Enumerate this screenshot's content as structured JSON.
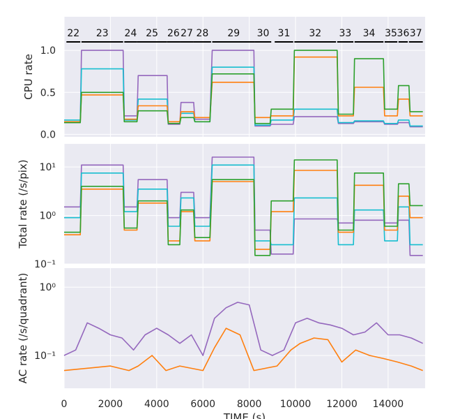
{
  "colors": {
    "panel_bg": "#eaeaf2",
    "grid": "#ffffff",
    "purple": "#9467bd",
    "cyan": "#17becf",
    "orange": "#ff7f0e",
    "green": "#2ca02c"
  },
  "chart_data": [
    {
      "type": "line",
      "ylabel": "CPU rate",
      "yscale": "linear",
      "ylim": [
        -0.03,
        1.4
      ],
      "yticks": [
        0.0,
        0.5,
        1.0
      ],
      "ytick_labels": [
        "0.0",
        "0.5",
        "1.0"
      ],
      "xlim": [
        0,
        15600
      ],
      "grid": true,
      "segment_labels": [
        {
          "label": "22",
          "x_start": 100,
          "x_end": 700
        },
        {
          "label": "23",
          "x_start": 750,
          "x_end": 2550
        },
        {
          "label": "24",
          "x_start": 2600,
          "x_end": 3150
        },
        {
          "label": "25",
          "x_start": 3150,
          "x_end": 4450
        },
        {
          "label": "26",
          "x_start": 4450,
          "x_end": 5000
        },
        {
          "label": "27",
          "x_start": 5000,
          "x_end": 5600
        },
        {
          "label": "28",
          "x_start": 5600,
          "x_end": 6350
        },
        {
          "label": "29",
          "x_start": 6400,
          "x_end": 8250
        },
        {
          "label": "30",
          "x_start": 8250,
          "x_end": 8950
        },
        {
          "label": "31",
          "x_start": 9100,
          "x_end": 9900
        },
        {
          "label": "32",
          "x_start": 9950,
          "x_end": 11750
        },
        {
          "label": "33",
          "x_start": 11800,
          "x_end": 12500
        },
        {
          "label": "34",
          "x_start": 12550,
          "x_end": 13800
        },
        {
          "label": "35",
          "x_start": 13850,
          "x_end": 14400
        },
        {
          "label": "36",
          "x_start": 14450,
          "x_end": 14850
        },
        {
          "label": "37",
          "x_start": 14900,
          "x_end": 15500
        }
      ],
      "series": [
        {
          "color": "purple",
          "x": [
            0,
            700,
            750,
            2550,
            2600,
            3150,
            3200,
            4450,
            4500,
            5000,
            5050,
            5600,
            5650,
            6300,
            6400,
            8200,
            8250,
            8900,
            8950,
            9900,
            9950,
            11800,
            11850,
            12500,
            12550,
            13800,
            13850,
            14400,
            14450,
            14900,
            14950,
            15500
          ],
          "y": [
            0.14,
            0.14,
            1.0,
            1.0,
            0.22,
            0.22,
            0.7,
            0.7,
            0.12,
            0.12,
            0.38,
            0.38,
            0.18,
            0.18,
            1.0,
            1.0,
            0.1,
            0.1,
            0.12,
            0.12,
            0.21,
            0.21,
            0.13,
            0.13,
            0.15,
            0.15,
            0.12,
            0.12,
            0.14,
            0.14,
            0.09,
            0.09
          ]
        },
        {
          "color": "cyan",
          "x": [
            0,
            700,
            750,
            2550,
            2600,
            3150,
            3200,
            4450,
            4500,
            5000,
            5050,
            5600,
            5650,
            6300,
            6400,
            8200,
            8250,
            8900,
            8950,
            9900,
            9950,
            11800,
            11850,
            12500,
            12550,
            13800,
            13850,
            14400,
            14450,
            14900,
            14950,
            15500
          ],
          "y": [
            0.17,
            0.17,
            0.78,
            0.78,
            0.17,
            0.17,
            0.42,
            0.42,
            0.15,
            0.15,
            0.25,
            0.25,
            0.15,
            0.15,
            0.8,
            0.8,
            0.11,
            0.11,
            0.17,
            0.17,
            0.3,
            0.3,
            0.14,
            0.14,
            0.16,
            0.16,
            0.13,
            0.13,
            0.17,
            0.17,
            0.1,
            0.1
          ]
        },
        {
          "color": "orange",
          "x": [
            0,
            700,
            750,
            2550,
            2600,
            3150,
            3200,
            4450,
            4500,
            5000,
            5050,
            5600,
            5650,
            6300,
            6400,
            8200,
            8250,
            8900,
            8950,
            9900,
            9950,
            11800,
            11850,
            12500,
            12550,
            13800,
            13850,
            14400,
            14450,
            14900,
            14950,
            15500
          ],
          "y": [
            0.15,
            0.15,
            0.47,
            0.47,
            0.18,
            0.18,
            0.34,
            0.34,
            0.15,
            0.15,
            0.27,
            0.27,
            0.2,
            0.2,
            0.62,
            0.62,
            0.2,
            0.2,
            0.22,
            0.22,
            0.92,
            0.92,
            0.22,
            0.22,
            0.56,
            0.56,
            0.22,
            0.22,
            0.42,
            0.42,
            0.22,
            0.22
          ]
        },
        {
          "color": "green",
          "x": [
            0,
            700,
            750,
            2550,
            2600,
            3150,
            3200,
            4450,
            4500,
            5000,
            5050,
            5600,
            5650,
            6300,
            6400,
            8200,
            8250,
            8900,
            8950,
            9900,
            9950,
            11800,
            11850,
            12500,
            12550,
            13800,
            13850,
            14400,
            14450,
            14900,
            14950,
            15500
          ],
          "y": [
            0.14,
            0.14,
            0.5,
            0.5,
            0.15,
            0.15,
            0.28,
            0.28,
            0.13,
            0.13,
            0.2,
            0.2,
            0.15,
            0.15,
            0.72,
            0.72,
            0.13,
            0.13,
            0.3,
            0.3,
            1.0,
            1.0,
            0.24,
            0.24,
            0.9,
            0.9,
            0.3,
            0.3,
            0.58,
            0.58,
            0.27,
            0.27
          ]
        }
      ]
    },
    {
      "type": "line",
      "ylabel": "Total rate (/s/pix)",
      "yscale": "log",
      "ylim": [
        0.1,
        30
      ],
      "yticks": [
        0.1,
        1,
        10
      ],
      "ytick_labels": [
        "10⁻¹",
        "10⁰",
        "10¹"
      ],
      "xlim": [
        0,
        15600
      ],
      "grid": true,
      "series": [
        {
          "color": "purple",
          "x": [
            0,
            700,
            750,
            2550,
            2600,
            3150,
            3200,
            4450,
            4500,
            5000,
            5050,
            5600,
            5650,
            6300,
            6400,
            8200,
            8250,
            8900,
            8950,
            9900,
            9950,
            11800,
            11850,
            12500,
            12550,
            13800,
            13850,
            14400,
            14450,
            14900,
            14950,
            15500
          ],
          "y": [
            1.5,
            1.5,
            11,
            11,
            1.5,
            1.5,
            5.5,
            5.5,
            0.9,
            0.9,
            3.0,
            3.0,
            0.9,
            0.9,
            16,
            16,
            0.5,
            0.5,
            0.16,
            0.16,
            0.85,
            0.85,
            0.7,
            0.7,
            0.8,
            0.8,
            0.7,
            0.7,
            0.8,
            0.8,
            0.15,
            0.15
          ]
        },
        {
          "color": "cyan",
          "x": [
            0,
            700,
            750,
            2550,
            2600,
            3150,
            3200,
            4450,
            4500,
            5000,
            5050,
            5600,
            5650,
            6300,
            6400,
            8200,
            8250,
            8900,
            8950,
            9900,
            9950,
            11800,
            11850,
            12500,
            12550,
            13800,
            13850,
            14400,
            14450,
            14900,
            14950,
            15500
          ],
          "y": [
            0.9,
            0.9,
            7.5,
            7.5,
            1.2,
            1.2,
            3.5,
            3.5,
            0.6,
            0.6,
            2.3,
            2.3,
            0.6,
            0.6,
            11,
            11,
            0.3,
            0.3,
            0.25,
            0.25,
            2.3,
            2.3,
            0.25,
            0.25,
            1.3,
            1.3,
            0.3,
            0.3,
            1.5,
            1.5,
            0.25,
            0.25
          ]
        },
        {
          "color": "orange",
          "x": [
            0,
            700,
            750,
            2550,
            2600,
            3150,
            3200,
            4450,
            4500,
            5000,
            5050,
            5600,
            5650,
            6300,
            6400,
            8200,
            8250,
            8900,
            8950,
            9900,
            9950,
            11800,
            11850,
            12500,
            12550,
            13800,
            13850,
            14400,
            14450,
            14900,
            14950,
            15500
          ],
          "y": [
            0.4,
            0.4,
            3.5,
            3.5,
            0.5,
            0.5,
            1.8,
            1.8,
            0.3,
            0.3,
            1.2,
            1.2,
            0.3,
            0.3,
            5.0,
            5.0,
            0.2,
            0.2,
            1.2,
            1.2,
            8.5,
            8.5,
            0.45,
            0.45,
            4.2,
            4.2,
            0.5,
            0.5,
            2.5,
            2.5,
            0.9,
            0.9
          ]
        },
        {
          "color": "green",
          "x": [
            0,
            700,
            750,
            2550,
            2600,
            3150,
            3200,
            4450,
            4500,
            5000,
            5050,
            5600,
            5650,
            6300,
            6400,
            8200,
            8250,
            8900,
            8950,
            9900,
            9950,
            11800,
            11850,
            12500,
            12550,
            13800,
            13850,
            14400,
            14450,
            14900,
            14950,
            15500
          ],
          "y": [
            0.45,
            0.45,
            4.0,
            4.0,
            0.55,
            0.55,
            2.0,
            2.0,
            0.25,
            0.25,
            1.3,
            1.3,
            0.35,
            0.35,
            5.5,
            5.5,
            0.15,
            0.15,
            2.0,
            2.0,
            14,
            14,
            0.5,
            0.5,
            7.5,
            7.5,
            0.6,
            0.6,
            4.5,
            4.5,
            1.6,
            1.6
          ]
        }
      ]
    },
    {
      "type": "line",
      "ylabel": "AC rate (/s/quadrant)",
      "xlabel": "TIME (s)",
      "yscale": "log",
      "ylim": [
        0.033,
        1.9
      ],
      "yticks": [
        0.1,
        1
      ],
      "ytick_labels": [
        "10⁻¹",
        "10⁰"
      ],
      "xlim": [
        0,
        15600
      ],
      "xticks": [
        0,
        2000,
        4000,
        6000,
        8000,
        10000,
        12000,
        14000
      ],
      "xtick_labels": [
        "0",
        "2000",
        "4000",
        "6000",
        "8000",
        "10000",
        "12000",
        "14000"
      ],
      "grid": true,
      "series": [
        {
          "color": "orange",
          "x": [
            0,
            2000,
            2800,
            3200,
            3800,
            4400,
            5000,
            6000,
            6500,
            7000,
            7600,
            8200,
            9200,
            9800,
            10200,
            10800,
            11400,
            12000,
            12600,
            13200,
            13800,
            14400,
            15000,
            15500
          ],
          "y": [
            0.06,
            0.07,
            0.06,
            0.07,
            0.1,
            0.06,
            0.07,
            0.06,
            0.13,
            0.25,
            0.2,
            0.06,
            0.07,
            0.12,
            0.15,
            0.18,
            0.17,
            0.08,
            0.12,
            0.1,
            0.09,
            0.08,
            0.07,
            0.06
          ]
        },
        {
          "color": "purple",
          "x": [
            0,
            500,
            1000,
            1500,
            2000,
            2500,
            3000,
            3500,
            4000,
            4500,
            5000,
            5500,
            6000,
            6500,
            7000,
            7500,
            8000,
            8500,
            9000,
            9500,
            10000,
            10500,
            11000,
            11500,
            12000,
            12500,
            13000,
            13500,
            14000,
            14500,
            15000,
            15500
          ],
          "y": [
            0.1,
            0.12,
            0.3,
            0.25,
            0.2,
            0.18,
            0.12,
            0.2,
            0.25,
            0.2,
            0.15,
            0.2,
            0.1,
            0.35,
            0.5,
            0.6,
            0.55,
            0.12,
            0.1,
            0.12,
            0.3,
            0.35,
            0.3,
            0.28,
            0.25,
            0.2,
            0.22,
            0.3,
            0.2,
            0.2,
            0.18,
            0.15
          ]
        }
      ]
    }
  ]
}
